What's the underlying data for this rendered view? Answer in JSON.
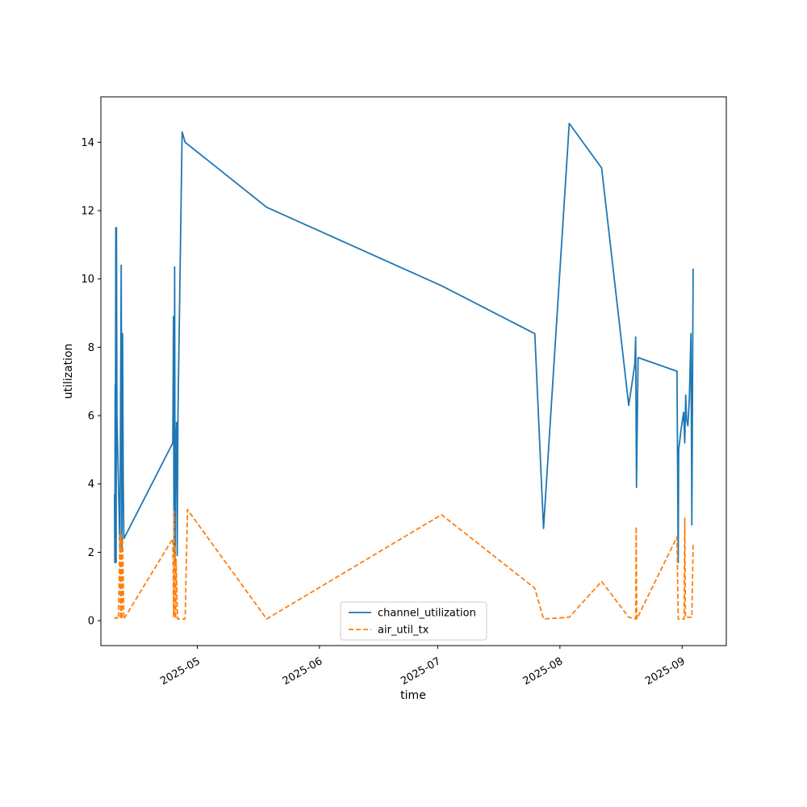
{
  "chart_data": {
    "type": "line",
    "title": "",
    "xlabel": "time",
    "ylabel": "utilization",
    "x_ticks": [
      "2025-05",
      "2025-06",
      "2025-07",
      "2025-08",
      "2025-09"
    ],
    "y_ticks": [
      0,
      2,
      4,
      6,
      8,
      10,
      12,
      14
    ],
    "xlim": [
      "2025-04-06T13:00",
      "2025-09-12T05:00"
    ],
    "ylim": [
      -0.73,
      15.33
    ],
    "grid": false,
    "legend_position": "lower-center",
    "series": [
      {
        "name": "channel_utilization",
        "color": "#1f77b4",
        "style": "solid",
        "points": [
          [
            "2025-04-10T00:00",
            3.7
          ],
          [
            "2025-04-10T02:00",
            1.7
          ],
          [
            "2025-04-10T04:00",
            6.9
          ],
          [
            "2025-04-10T06:00",
            6.1
          ],
          [
            "2025-04-10T08:00",
            11.5
          ],
          [
            "2025-04-10T10:00",
            1.7
          ],
          [
            "2025-04-10T12:00",
            11.5
          ],
          [
            "2025-04-10T15:00",
            6.0
          ],
          [
            "2025-04-11T09:00",
            2.1
          ],
          [
            "2025-04-11T17:00",
            10.4
          ],
          [
            "2025-04-11T21:00",
            2.1
          ],
          [
            "2025-04-12T01:00",
            8.4
          ],
          [
            "2025-04-12T05:00",
            4.1
          ],
          [
            "2025-04-12T09:00",
            2.4
          ],
          [
            "2025-04-24T19:00",
            5.2
          ],
          [
            "2025-04-24T23:00",
            8.9
          ],
          [
            "2025-04-25T01:00",
            4.0
          ],
          [
            "2025-04-25T03:00",
            1.9
          ],
          [
            "2025-04-25T06:00",
            10.35
          ],
          [
            "2025-04-25T09:00",
            1.7
          ],
          [
            "2025-04-25T12:00",
            5.6
          ],
          [
            "2025-04-25T15:00",
            4.7
          ],
          [
            "2025-04-25T18:00",
            5.8
          ],
          [
            "2025-04-25T22:00",
            1.9
          ],
          [
            "2025-04-26T02:00",
            6.0
          ],
          [
            "2025-04-27T04:00",
            14.3
          ],
          [
            "2025-04-27T22:00",
            14.0
          ],
          [
            "2025-05-18T14:00",
            12.1
          ],
          [
            "2025-07-01T23:00",
            9.8
          ],
          [
            "2025-07-25T15:00",
            8.4
          ],
          [
            "2025-07-27T20:00",
            2.7
          ],
          [
            "2025-08-03T09:00",
            14.55
          ],
          [
            "2025-08-11T14:00",
            13.25
          ],
          [
            "2025-08-18T11:00",
            6.3
          ],
          [
            "2025-08-20T00:00",
            7.5
          ],
          [
            "2025-08-20T05:00",
            8.3
          ],
          [
            "2025-08-20T10:00",
            3.9
          ],
          [
            "2025-08-20T20:00",
            7.7
          ],
          [
            "2025-08-30T17:00",
            7.3
          ],
          [
            "2025-08-31T00:00",
            1.7
          ],
          [
            "2025-08-31T03:00",
            5.0
          ],
          [
            "2025-08-31T18:00",
            5.6
          ],
          [
            "2025-09-01T09:00",
            6.1
          ],
          [
            "2025-09-01T16:00",
            5.2
          ],
          [
            "2025-09-01T22:00",
            6.6
          ],
          [
            "2025-09-02T03:00",
            5.9
          ],
          [
            "2025-09-02T11:00",
            5.7
          ],
          [
            "2025-09-02T20:00",
            6.5
          ],
          [
            "2025-09-03T06:00",
            8.4
          ],
          [
            "2025-09-03T11:00",
            2.8
          ],
          [
            "2025-09-03T19:00",
            10.3
          ]
        ]
      },
      {
        "name": "air_util_tx",
        "color": "#ff7f0e",
        "style": "dashed",
        "points": [
          [
            "2025-04-10T00:00",
            0.05
          ],
          [
            "2025-04-10T08:00",
            0.1
          ],
          [
            "2025-04-11T00:00",
            0.05
          ],
          [
            "2025-04-11T09:00",
            2.5
          ],
          [
            "2025-04-11T13:00",
            0.05
          ],
          [
            "2025-04-11T17:00",
            2.6
          ],
          [
            "2025-04-11T21:00",
            0.05
          ],
          [
            "2025-04-12T01:00",
            2.4
          ],
          [
            "2025-04-12T09:00",
            0.05
          ],
          [
            "2025-04-24T19:00",
            2.4
          ],
          [
            "2025-04-25T00:00",
            0.1
          ],
          [
            "2025-04-25T03:00",
            3.2
          ],
          [
            "2025-04-25T06:00",
            0.1
          ],
          [
            "2025-04-25T09:00",
            2.2
          ],
          [
            "2025-04-25T12:00",
            0.05
          ],
          [
            "2025-04-25T15:00",
            1.8
          ],
          [
            "2025-04-26T00:00",
            0.05
          ],
          [
            "2025-04-27T22:00",
            0.05
          ],
          [
            "2025-04-28T12:00",
            3.25
          ],
          [
            "2025-05-18T14:00",
            0.05
          ],
          [
            "2025-07-01T23:00",
            3.1
          ],
          [
            "2025-07-25T15:00",
            0.95
          ],
          [
            "2025-07-27T20:00",
            0.05
          ],
          [
            "2025-08-03T09:00",
            0.1
          ],
          [
            "2025-08-11T14:00",
            1.15
          ],
          [
            "2025-08-18T11:00",
            0.1
          ],
          [
            "2025-08-20T05:00",
            0.05
          ],
          [
            "2025-08-20T08:00",
            2.75
          ],
          [
            "2025-08-20T12:00",
            0.05
          ],
          [
            "2025-08-30T17:00",
            2.45
          ],
          [
            "2025-08-31T00:00",
            0.05
          ],
          [
            "2025-09-01T12:00",
            0.05
          ],
          [
            "2025-09-01T16:00",
            3.0
          ],
          [
            "2025-09-01T20:00",
            0.1
          ],
          [
            "2025-09-03T11:00",
            0.1
          ],
          [
            "2025-09-03T19:00",
            2.25
          ]
        ]
      }
    ]
  }
}
